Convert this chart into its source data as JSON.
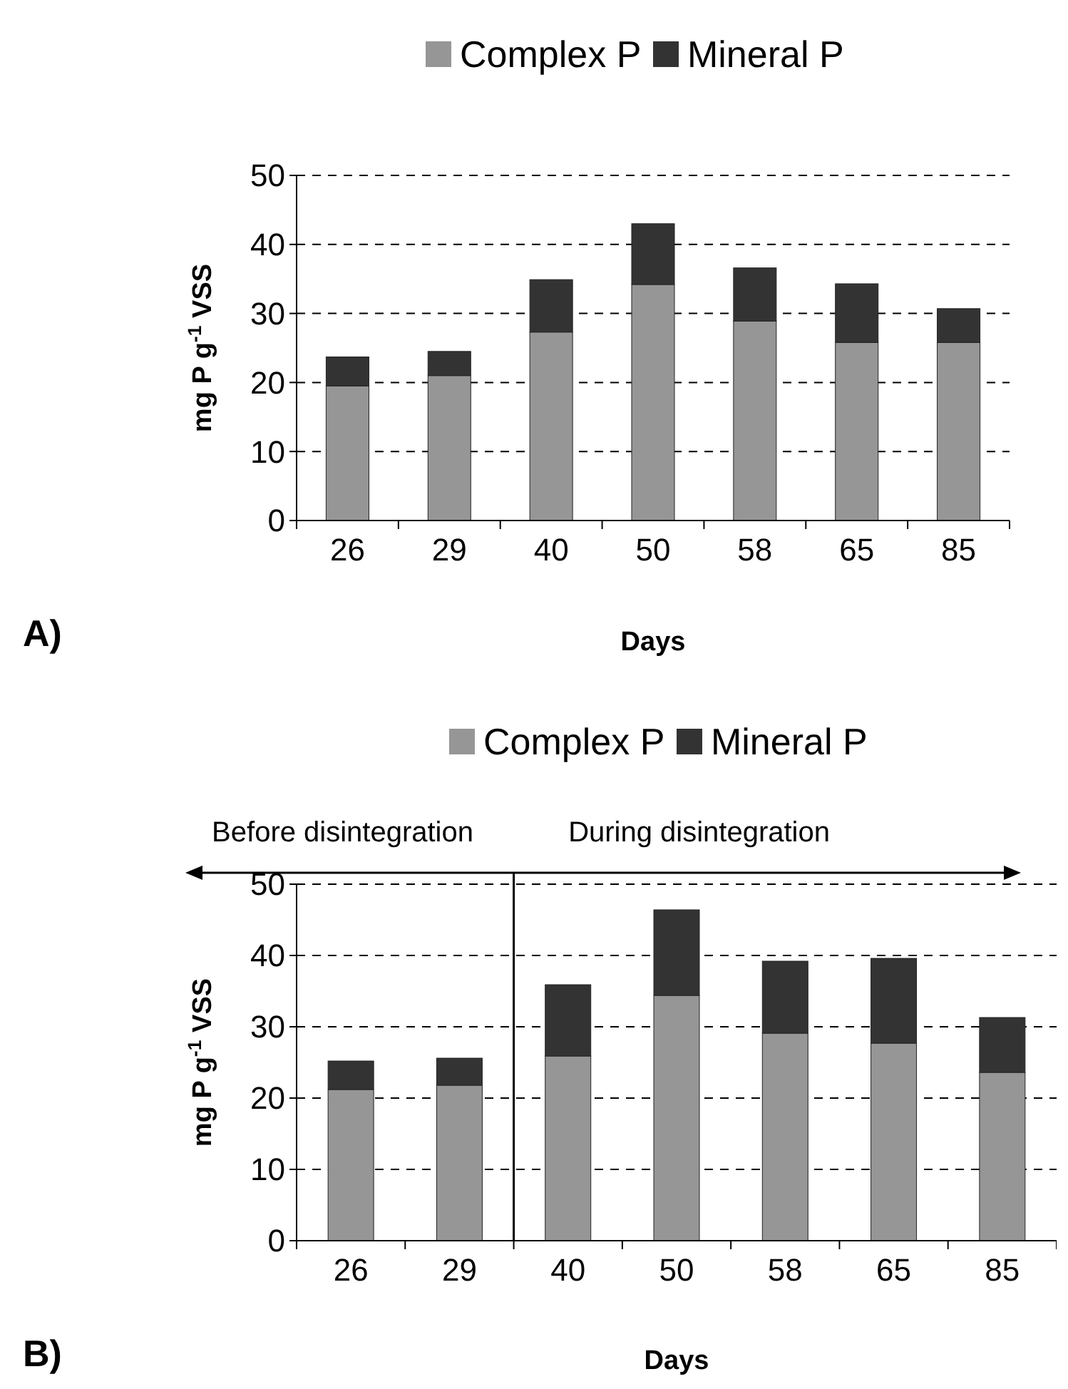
{
  "chart_data": [
    {
      "type": "bar",
      "stacked": true,
      "categories": [
        "26",
        "29",
        "40",
        "50",
        "58",
        "65",
        "85"
      ],
      "series": [
        {
          "name": "Complex P",
          "color": "#969696",
          "values": [
            19.5,
            21.0,
            27.3,
            34.2,
            28.9,
            25.8,
            25.8
          ]
        },
        {
          "name": "Mineral P",
          "color": "#333333",
          "values": [
            4.2,
            3.5,
            7.6,
            8.8,
            7.7,
            8.5,
            4.9
          ]
        }
      ],
      "xlabel": "Days",
      "ylabel": "mg P g$^{-1}$ VSS",
      "ylim": [
        0,
        50
      ],
      "yticks": [
        0,
        10,
        20,
        30,
        40,
        50
      ],
      "grid": "y",
      "legend": "top",
      "annotations": [
        "A)"
      ]
    },
    {
      "type": "bar",
      "stacked": true,
      "categories": [
        "26",
        "29",
        "40",
        "50",
        "58",
        "65",
        "85"
      ],
      "series": [
        {
          "name": "Complex P",
          "color": "#969696",
          "values": [
            21.2,
            21.8,
            25.9,
            34.4,
            29.1,
            27.7,
            23.6
          ]
        },
        {
          "name": "Mineral P",
          "color": "#333333",
          "values": [
            4.0,
            3.8,
            10.0,
            12.0,
            10.1,
            11.9,
            7.7
          ]
        }
      ],
      "xlabel": "Days",
      "ylabel": "mg P g$^{-1}$ VSS",
      "ylim": [
        0,
        50
      ],
      "yticks": [
        0,
        10,
        20,
        30,
        40,
        50
      ],
      "grid": "y",
      "legend": "top",
      "annotations": [
        "Before disintegration",
        "During disintegration",
        "B)"
      ],
      "ref_lines": [
        {
          "axis": "x",
          "value": "40",
          "color": "#000000"
        }
      ]
    }
  ]
}
